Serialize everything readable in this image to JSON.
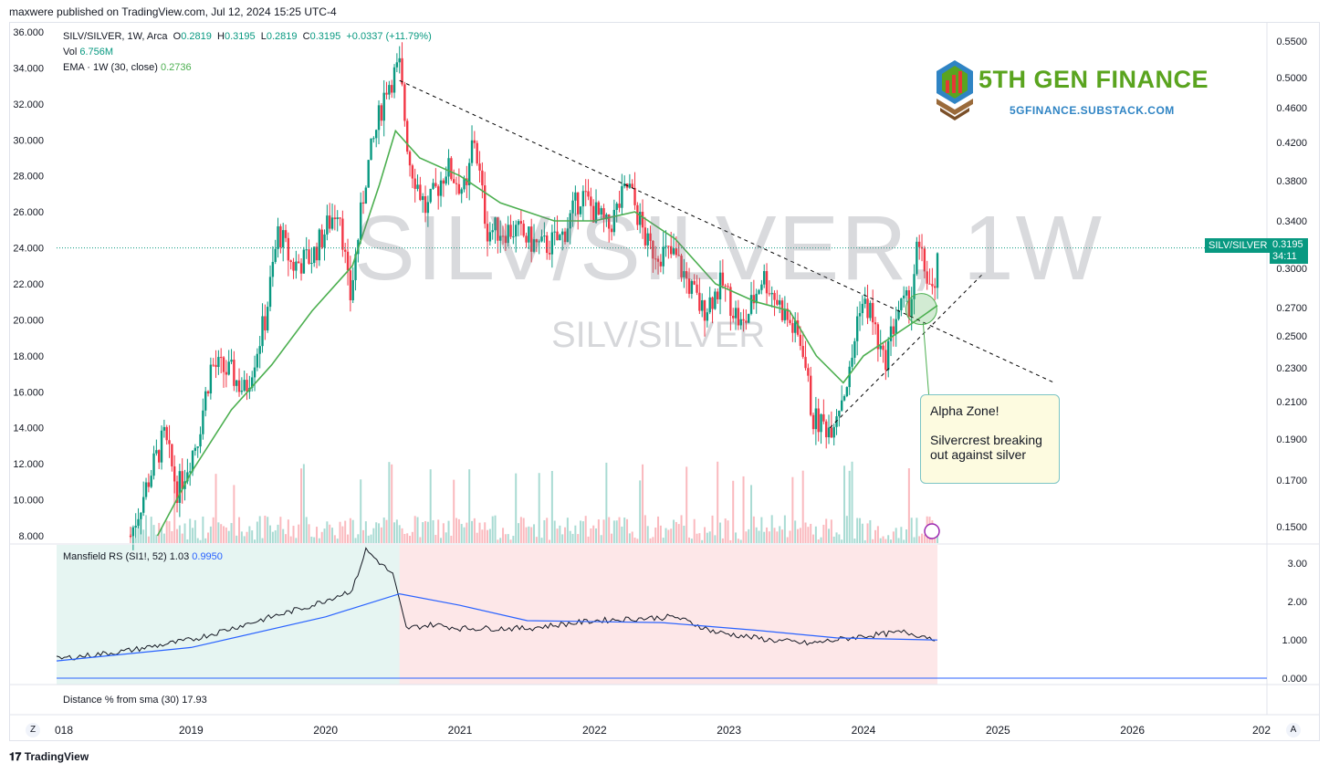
{
  "header": "maxwere published on TradingView.com, Jul 12, 2024 15:25 UTC-4",
  "legend": {
    "symbol": "SILV/SILVER, 1W, Arca",
    "o_label": "O",
    "o": "0.2819",
    "h_label": "H",
    "h": "0.3195",
    "l_label": "L",
    "l": "0.2819",
    "c_label": "C",
    "c": "0.3195",
    "chg": "+0.0337 (+11.79%)",
    "vol_label": "Vol",
    "vol": "6.756M",
    "ema_label": "EMA · 1W (30, close)",
    "ema": "0.2736"
  },
  "watermark": {
    "big": "SILV/SILVER, 1W",
    "small": "SILV/SILVER"
  },
  "logo": {
    "title": "5TH GEN FINANCE",
    "subtitle": "5GFINANCE.SUBSTACK.COM"
  },
  "callout": {
    "title": "Alpha Zone!",
    "body": "Silvercrest breaking out against silver"
  },
  "price_tag": {
    "symbol": "SILV/SILVER",
    "price": "0.3195",
    "countdown": "34:11"
  },
  "lower_panel": {
    "mansfield_label": "Mansfield RS (SI1!, 52)",
    "mansfield_val1": "1.03",
    "mansfield_val2": "0.9950",
    "distance_label": "Distance % from sma (30)",
    "distance_val": "17.93"
  },
  "footer": "TradingView",
  "buttons": {
    "zoom": "Z",
    "auto": "A"
  },
  "colors": {
    "up": "#089981",
    "down": "#f23645",
    "ema": "#4caf50",
    "rs": "#2962ff",
    "trend": "#000000"
  },
  "chart_data": {
    "type": "candlestick",
    "symbol": "SILV/SILVER",
    "timeframe": "1W",
    "left_axis_ticks": [
      "36.000",
      "34.000",
      "32.000",
      "30.000",
      "28.000",
      "26.000",
      "24.000",
      "22.000",
      "20.000",
      "18.000",
      "16.000",
      "14.000",
      "12.000",
      "10.000",
      "8.000"
    ],
    "right_axis_ticks": [
      "0.5500",
      "0.5000",
      "0.4600",
      "0.4200",
      "0.3800",
      "0.3400",
      "0.3000",
      "0.2700",
      "0.2500",
      "0.2300",
      "0.2100",
      "0.1900",
      "0.1700",
      "0.1500"
    ],
    "rs_axis_ticks": [
      "3.00",
      "2.00",
      "1.000",
      "0.000"
    ],
    "x_ticks": [
      "018",
      "2019",
      "2020",
      "2021",
      "2022",
      "2023",
      "2024",
      "2025",
      "2026",
      "202"
    ],
    "price_path": [
      {
        "t": 2018.55,
        "v": 8.0
      },
      {
        "t": 2018.7,
        "v": 11.5
      },
      {
        "t": 2018.8,
        "v": 13.5
      },
      {
        "t": 2018.9,
        "v": 10.5
      },
      {
        "t": 2019.05,
        "v": 13.5
      },
      {
        "t": 2019.15,
        "v": 17.5
      },
      {
        "t": 2019.3,
        "v": 17.0
      },
      {
        "t": 2019.4,
        "v": 16.0
      },
      {
        "t": 2019.55,
        "v": 20.0
      },
      {
        "t": 2019.65,
        "v": 25.0
      },
      {
        "t": 2019.75,
        "v": 23.0
      },
      {
        "t": 2019.9,
        "v": 23.5
      },
      {
        "t": 2020.1,
        "v": 26.5
      },
      {
        "t": 2020.18,
        "v": 21.0
      },
      {
        "t": 2020.3,
        "v": 28.0
      },
      {
        "t": 2020.45,
        "v": 33.0
      },
      {
        "t": 2020.55,
        "v": 34.0
      },
      {
        "t": 2020.62,
        "v": 29.0
      },
      {
        "t": 2020.75,
        "v": 26.0
      },
      {
        "t": 2020.9,
        "v": 28.5
      },
      {
        "t": 2021.05,
        "v": 27.0
      },
      {
        "t": 2021.1,
        "v": 30.5
      },
      {
        "t": 2021.2,
        "v": 25.0
      },
      {
        "t": 2021.4,
        "v": 25.0
      },
      {
        "t": 2021.6,
        "v": 24.0
      },
      {
        "t": 2021.75,
        "v": 24.5
      },
      {
        "t": 2021.9,
        "v": 27.0
      },
      {
        "t": 2022.1,
        "v": 25.0
      },
      {
        "t": 2022.25,
        "v": 27.5
      },
      {
        "t": 2022.4,
        "v": 24.0
      },
      {
        "t": 2022.6,
        "v": 23.5
      },
      {
        "t": 2022.8,
        "v": 20.5
      },
      {
        "t": 2022.95,
        "v": 22.0
      },
      {
        "t": 2023.1,
        "v": 19.5
      },
      {
        "t": 2023.25,
        "v": 22.5
      },
      {
        "t": 2023.4,
        "v": 20.5
      },
      {
        "t": 2023.55,
        "v": 18.5
      },
      {
        "t": 2023.62,
        "v": 14.5
      },
      {
        "t": 2023.75,
        "v": 14.0
      },
      {
        "t": 2023.9,
        "v": 17.0
      },
      {
        "t": 2023.97,
        "v": 21.0
      },
      {
        "t": 2024.05,
        "v": 20.5
      },
      {
        "t": 2024.15,
        "v": 17.5
      },
      {
        "t": 2024.25,
        "v": 20.5
      },
      {
        "t": 2024.35,
        "v": 21.0
      },
      {
        "t": 2024.4,
        "v": 24.0
      },
      {
        "t": 2024.47,
        "v": 22.5
      },
      {
        "t": 2024.53,
        "v": 21.0
      },
      {
        "t": 2024.55,
        "v": 24.0
      }
    ],
    "ema_path": [
      {
        "t": 2018.75,
        "v": 8.0
      },
      {
        "t": 2019.0,
        "v": 11.5
      },
      {
        "t": 2019.3,
        "v": 15.0
      },
      {
        "t": 2019.6,
        "v": 17.5
      },
      {
        "t": 2019.9,
        "v": 20.5
      },
      {
        "t": 2020.2,
        "v": 23.0
      },
      {
        "t": 2020.4,
        "v": 27.5
      },
      {
        "t": 2020.52,
        "v": 30.5
      },
      {
        "t": 2020.7,
        "v": 29.0
      },
      {
        "t": 2021.0,
        "v": 28.0
      },
      {
        "t": 2021.3,
        "v": 26.5
      },
      {
        "t": 2021.7,
        "v": 25.5
      },
      {
        "t": 2022.0,
        "v": 25.5
      },
      {
        "t": 2022.3,
        "v": 26.0
      },
      {
        "t": 2022.6,
        "v": 24.5
      },
      {
        "t": 2022.9,
        "v": 22.0
      },
      {
        "t": 2023.2,
        "v": 21.0
      },
      {
        "t": 2023.45,
        "v": 20.5
      },
      {
        "t": 2023.65,
        "v": 18.0
      },
      {
        "t": 2023.85,
        "v": 16.5
      },
      {
        "t": 2024.0,
        "v": 18.0
      },
      {
        "t": 2024.2,
        "v": 19.0
      },
      {
        "t": 2024.4,
        "v": 20.0
      },
      {
        "t": 2024.55,
        "v": 20.8
      }
    ],
    "trendlines": [
      {
        "name": "downtrend",
        "t1": 2020.55,
        "v1": 33.3,
        "t2": 2025.42,
        "v2": 16.5
      },
      {
        "name": "uptrend",
        "t1": 2023.75,
        "v1": 14.0,
        "t2": 2024.88,
        "v2": 22.5
      }
    ],
    "rs_path": [
      {
        "t": 2018.0,
        "v": 0.5
      },
      {
        "t": 2018.5,
        "v": 0.7
      },
      {
        "t": 2019.0,
        "v": 1.0
      },
      {
        "t": 2019.5,
        "v": 1.5
      },
      {
        "t": 2019.9,
        "v": 1.9
      },
      {
        "t": 2020.2,
        "v": 2.3
      },
      {
        "t": 2020.3,
        "v": 3.35
      },
      {
        "t": 2020.5,
        "v": 2.7
      },
      {
        "t": 2020.6,
        "v": 1.3
      },
      {
        "t": 2020.8,
        "v": 1.4
      },
      {
        "t": 2021.0,
        "v": 1.3
      },
      {
        "t": 2021.5,
        "v": 1.3
      },
      {
        "t": 2022.0,
        "v": 1.5
      },
      {
        "t": 2022.6,
        "v": 1.6
      },
      {
        "t": 2022.9,
        "v": 1.2
      },
      {
        "t": 2023.3,
        "v": 1.0
      },
      {
        "t": 2023.6,
        "v": 0.9
      },
      {
        "t": 2024.0,
        "v": 1.1
      },
      {
        "t": 2024.3,
        "v": 1.2
      },
      {
        "t": 2024.55,
        "v": 1.03
      }
    ],
    "rs_sma_path": [
      {
        "t": 2018.0,
        "v": 0.45
      },
      {
        "t": 2019.0,
        "v": 0.8
      },
      {
        "t": 2020.0,
        "v": 1.6
      },
      {
        "t": 2020.55,
        "v": 2.2
      },
      {
        "t": 2021.0,
        "v": 1.9
      },
      {
        "t": 2021.5,
        "v": 1.5
      },
      {
        "t": 2022.5,
        "v": 1.45
      },
      {
        "t": 2023.2,
        "v": 1.25
      },
      {
        "t": 2023.8,
        "v": 1.05
      },
      {
        "t": 2024.55,
        "v": 0.995
      }
    ]
  }
}
